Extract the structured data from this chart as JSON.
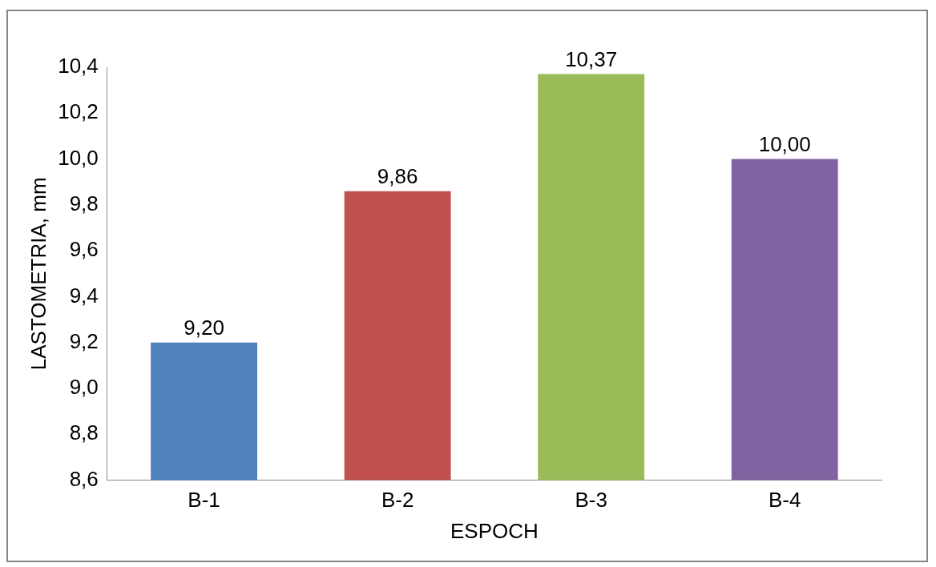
{
  "chart_data": {
    "type": "bar",
    "xlabel": "ESPOCH",
    "ylabel": "LASTOMETRIA, mm",
    "categories": [
      "B-1",
      "B-2",
      "B-3",
      "B-4"
    ],
    "values": [
      9.2,
      9.86,
      10.37,
      10.0
    ],
    "colors": [
      "#4f81bd",
      "#c0504d",
      "#9bbb59",
      "#8064a2"
    ],
    "value_labels": [
      "9,20",
      "9,86",
      "10,37",
      "10,00"
    ],
    "ylim": [
      8.6,
      10.4
    ],
    "yticks": [
      {
        "value": 8.6,
        "label": "8,6"
      },
      {
        "value": 8.8,
        "label": "8,8"
      },
      {
        "value": 9.0,
        "label": "9,0"
      },
      {
        "value": 9.2,
        "label": "9,2"
      },
      {
        "value": 9.4,
        "label": "9,4"
      },
      {
        "value": 9.6,
        "label": "9,6"
      },
      {
        "value": 9.8,
        "label": "9,8"
      },
      {
        "value": 10.0,
        "label": "10,0"
      },
      {
        "value": 10.2,
        "label": "10,2"
      },
      {
        "value": 10.4,
        "label": "10,4"
      }
    ]
  }
}
